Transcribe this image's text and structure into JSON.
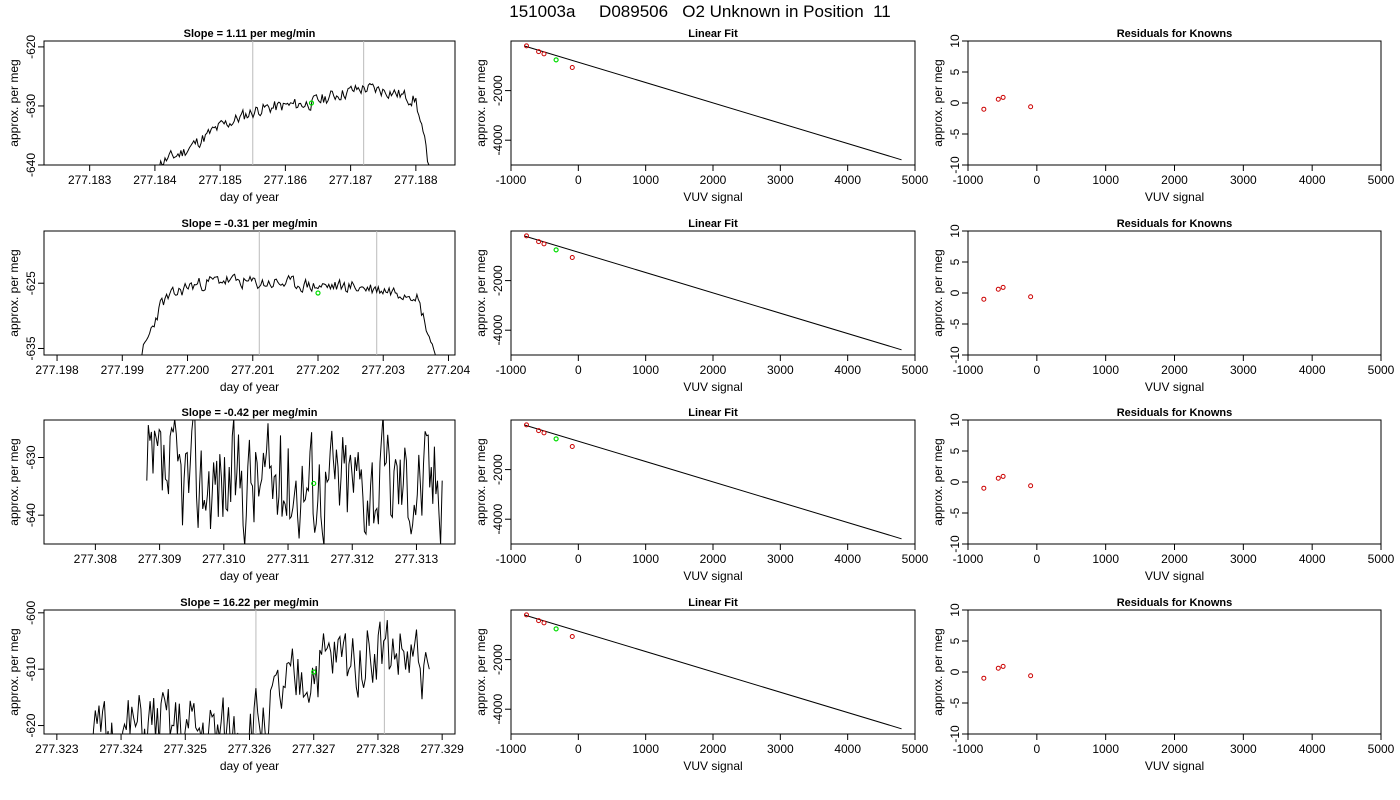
{
  "figure_title": "151003a     D089506   O2 Unknown in Position  11",
  "colors": {
    "trace": "#000000",
    "marker_current": "#00dd00",
    "marker_known": "#cc0000",
    "vline": "#bbbbbb",
    "axis": "#000000"
  },
  "chart_data": [
    {
      "type": "line",
      "panel": "trace",
      "row": 1,
      "title": "Slope =  1.11  per meg/min",
      "xlabel": "day of year",
      "ylabel": "approx. per meg",
      "xlim": [
        277.1823,
        277.1886
      ],
      "ylim": [
        -640,
        -619
      ],
      "xticks": [
        277.183,
        277.184,
        277.185,
        277.186,
        277.187,
        277.188
      ],
      "xtick_labels": [
        "277.183",
        "277.184",
        "277.185",
        "277.186",
        "277.187",
        "277.188"
      ],
      "yticks": [
        -640,
        -630,
        -620
      ],
      "ytick_labels": [
        "-640",
        "-630",
        "-620"
      ],
      "vlines": [
        277.1855,
        277.1872
      ],
      "highlight_point": {
        "x": 277.1864,
        "y": -629.5
      },
      "trace": {
        "x_start": 277.184,
        "x_end": 277.1882,
        "clip_low": true,
        "clip_high": false,
        "seed": 11,
        "knots": [
          [
            277.184,
            -640
          ],
          [
            277.1844,
            -638
          ],
          [
            277.1848,
            -635
          ],
          [
            277.185,
            -633.5
          ],
          [
            277.1853,
            -632
          ],
          [
            277.1856,
            -630.5
          ],
          [
            277.186,
            -630
          ],
          [
            277.1864,
            -629.5
          ],
          [
            277.1868,
            -628
          ],
          [
            277.1872,
            -627
          ],
          [
            277.1876,
            -627.5
          ],
          [
            277.188,
            -629
          ],
          [
            277.1882,
            -640
          ]
        ],
        "noise": 1.6
      }
    },
    {
      "type": "scatter",
      "panel": "fit",
      "row": 1,
      "title": "Linear Fit",
      "xlabel": "VUV signal",
      "ylabel": "approx. per meg",
      "xlim": [
        -1000,
        5000
      ],
      "ylim": [
        -5000,
        0
      ],
      "xticks": [
        -1000,
        0,
        1000,
        2000,
        3000,
        4000,
        5000
      ],
      "xtick_labels": [
        "-1000",
        "0",
        "1000",
        "2000",
        "3000",
        "4000",
        "5000"
      ],
      "yticks": [
        -4000,
        -2000
      ],
      "ytick_labels": [
        "-4000",
        "-2000"
      ],
      "fit_line": {
        "x": [
          -800,
          4800
        ],
        "y": [
          -200,
          -4790
        ]
      },
      "known_points": {
        "x": [
          -770,
          -590,
          -510,
          -90
        ],
        "y": [
          -195,
          -430,
          -520,
          -1070
        ]
      },
      "unknown_point": {
        "x": -330,
        "y": -760
      }
    },
    {
      "type": "scatter",
      "panel": "residuals",
      "row": 1,
      "title": "Residuals for Knowns",
      "xlabel": "VUV signal",
      "ylabel": "approx. per meg",
      "xlim": [
        -1000,
        5000
      ],
      "ylim": [
        -10,
        10
      ],
      "xticks": [
        -1000,
        0,
        1000,
        2000,
        3000,
        4000,
        5000
      ],
      "xtick_labels": [
        "-1000",
        "0",
        "1000",
        "2000",
        "3000",
        "4000",
        "5000"
      ],
      "yticks": [
        -10,
        -5,
        0,
        5,
        10
      ],
      "ytick_labels": [
        "-10",
        "-5",
        "0",
        "5",
        "10"
      ],
      "points": {
        "x": [
          -770,
          -560,
          -490,
          -90
        ],
        "y": [
          -1.0,
          0.6,
          0.9,
          -0.6
        ]
      }
    },
    {
      "type": "line",
      "panel": "trace",
      "row": 2,
      "title": "Slope =  -0.31  per meg/min",
      "xlabel": "day of year",
      "ylabel": "approx. per meg",
      "xlim": [
        277.1978,
        277.2041
      ],
      "ylim": [
        -636,
        -617
      ],
      "xticks": [
        277.198,
        277.199,
        277.2,
        277.201,
        277.202,
        277.203,
        277.204
      ],
      "xtick_labels": [
        "277.198",
        "277.199",
        "277.200",
        "277.201",
        "277.202",
        "277.203",
        "277.204"
      ],
      "yticks": [
        -635,
        -625
      ],
      "ytick_labels": [
        "-635",
        "-625"
      ],
      "vlines": [
        277.2011,
        277.2029
      ],
      "highlight_point": {
        "x": 277.202,
        "y": -626.5
      },
      "trace": {
        "x_start": 277.1993,
        "x_end": 277.2038,
        "clip_low": true,
        "clip_high": false,
        "seed": 23,
        "knots": [
          [
            277.1993,
            -636
          ],
          [
            277.1996,
            -628
          ],
          [
            277.2,
            -625.5
          ],
          [
            277.2005,
            -624.5
          ],
          [
            277.201,
            -625
          ],
          [
            277.2015,
            -625
          ],
          [
            277.202,
            -625.5
          ],
          [
            277.2025,
            -625.5
          ],
          [
            277.203,
            -626
          ],
          [
            277.2035,
            -626.5
          ],
          [
            277.2038,
            -636
          ]
        ],
        "noise": 1.5
      }
    },
    {
      "type": "scatter",
      "panel": "fit",
      "row": 2,
      "title": "Linear Fit",
      "xlabel": "VUV signal",
      "ylabel": "approx. per meg",
      "xlim": [
        -1000,
        5000
      ],
      "ylim": [
        -5000,
        0
      ],
      "xticks": [
        -1000,
        0,
        1000,
        2000,
        3000,
        4000,
        5000
      ],
      "xtick_labels": [
        "-1000",
        "0",
        "1000",
        "2000",
        "3000",
        "4000",
        "5000"
      ],
      "yticks": [
        -4000,
        -2000
      ],
      "ytick_labels": [
        "-4000",
        "-2000"
      ],
      "fit_line": {
        "x": [
          -800,
          4800
        ],
        "y": [
          -200,
          -4790
        ]
      },
      "known_points": {
        "x": [
          -770,
          -590,
          -510,
          -90
        ],
        "y": [
          -195,
          -430,
          -520,
          -1070
        ]
      },
      "unknown_point": {
        "x": -330,
        "y": -760
      }
    },
    {
      "type": "scatter",
      "panel": "residuals",
      "row": 2,
      "title": "Residuals for Knowns",
      "xlabel": "VUV signal",
      "ylabel": "approx. per meg",
      "xlim": [
        -1000,
        5000
      ],
      "ylim": [
        -10,
        10
      ],
      "xticks": [
        -1000,
        0,
        1000,
        2000,
        3000,
        4000,
        5000
      ],
      "xtick_labels": [
        "-1000",
        "0",
        "1000",
        "2000",
        "3000",
        "4000",
        "5000"
      ],
      "yticks": [
        -10,
        -5,
        0,
        5,
        10
      ],
      "ytick_labels": [
        "-10",
        "-5",
        "0",
        "5",
        "10"
      ],
      "points": {
        "x": [
          -770,
          -560,
          -490,
          -90
        ],
        "y": [
          -1.0,
          0.6,
          0.9,
          -0.6
        ]
      }
    },
    {
      "type": "line",
      "panel": "trace",
      "row": 3,
      "title": "Slope =  -0.42  per meg/min",
      "xlabel": "day of year",
      "ylabel": "approx. per meg",
      "xlim": [
        277.3072,
        277.3136
      ],
      "ylim": [
        -645,
        -623.5
      ],
      "xticks": [
        277.308,
        277.309,
        277.31,
        277.311,
        277.312,
        277.313
      ],
      "xtick_labels": [
        "277.308",
        "277.309",
        "277.310",
        "277.311",
        "277.312",
        "277.313"
      ],
      "yticks": [
        -640,
        -630
      ],
      "ytick_labels": [
        "-640",
        "-630"
      ],
      "vlines": [],
      "highlight_point": {
        "x": 277.3114,
        "y": -634.5
      },
      "trace": {
        "x_start": 277.3088,
        "x_end": 277.3134,
        "clip_low": true,
        "clip_high": true,
        "seed": 37,
        "knots": [
          [
            277.3088,
            -634
          ],
          [
            277.31,
            -634
          ],
          [
            277.311,
            -634
          ],
          [
            277.312,
            -634
          ],
          [
            277.3134,
            -634
          ]
        ],
        "noise": 14
      }
    },
    {
      "type": "scatter",
      "panel": "fit",
      "row": 3,
      "title": "Linear Fit",
      "xlabel": "VUV signal",
      "ylabel": "approx. per meg",
      "xlim": [
        -1000,
        5000
      ],
      "ylim": [
        -5000,
        0
      ],
      "xticks": [
        -1000,
        0,
        1000,
        2000,
        3000,
        4000,
        5000
      ],
      "xtick_labels": [
        "-1000",
        "0",
        "1000",
        "2000",
        "3000",
        "4000",
        "5000"
      ],
      "yticks": [
        -4000,
        -2000
      ],
      "ytick_labels": [
        "-4000",
        "-2000"
      ],
      "fit_line": {
        "x": [
          -800,
          4800
        ],
        "y": [
          -200,
          -4790
        ]
      },
      "known_points": {
        "x": [
          -770,
          -590,
          -510,
          -90
        ],
        "y": [
          -195,
          -430,
          -520,
          -1070
        ]
      },
      "unknown_point": {
        "x": -330,
        "y": -760
      }
    },
    {
      "type": "scatter",
      "panel": "residuals",
      "row": 3,
      "title": "Residuals for Knowns",
      "xlabel": "VUV signal",
      "ylabel": "approx. per meg",
      "xlim": [
        -1000,
        5000
      ],
      "ylim": [
        -10,
        10
      ],
      "xticks": [
        -1000,
        0,
        1000,
        2000,
        3000,
        4000,
        5000
      ],
      "xtick_labels": [
        "-1000",
        "0",
        "1000",
        "2000",
        "3000",
        "4000",
        "5000"
      ],
      "yticks": [
        -10,
        -5,
        0,
        5,
        10
      ],
      "ytick_labels": [
        "-10",
        "-5",
        "0",
        "5",
        "10"
      ],
      "points": {
        "x": [
          -770,
          -560,
          -490,
          -90
        ],
        "y": [
          -1.0,
          0.6,
          0.9,
          -0.6
        ]
      }
    },
    {
      "type": "line",
      "panel": "trace",
      "row": 4,
      "title": "Slope =  16.22  per meg/min",
      "xlabel": "day of year",
      "ylabel": "approx. per meg",
      "xlim": [
        277.3228,
        277.3292
      ],
      "ylim": [
        -621.5,
        -599.5
      ],
      "xticks": [
        277.323,
        277.324,
        277.325,
        277.326,
        277.327,
        277.328,
        277.329
      ],
      "xtick_labels": [
        "277.323",
        "277.324",
        "277.325",
        "277.326",
        "277.327",
        "277.328",
        "277.329"
      ],
      "yticks": [
        -620,
        -610,
        -600
      ],
      "ytick_labels": [
        "-620",
        "-610",
        "-600"
      ],
      "vlines": [
        277.3261,
        277.3281
      ],
      "highlight_point": {
        "x": 277.327,
        "y": -610.5
      },
      "trace": {
        "x_start": 277.3234,
        "x_end": 277.3288,
        "clip_low": true,
        "clip_high": true,
        "seed": 51,
        "knots": [
          [
            277.3234,
            -624
          ],
          [
            277.3245,
            -620
          ],
          [
            277.3255,
            -622
          ],
          [
            277.3262,
            -619
          ],
          [
            277.327,
            -610
          ],
          [
            277.328,
            -606
          ],
          [
            277.3288,
            -610
          ]
        ],
        "noise": 9
      }
    },
    {
      "type": "scatter",
      "panel": "fit",
      "row": 4,
      "title": "Linear Fit",
      "xlabel": "VUV signal",
      "ylabel": "approx. per meg",
      "xlim": [
        -1000,
        5000
      ],
      "ylim": [
        -5000,
        0
      ],
      "xticks": [
        -1000,
        0,
        1000,
        2000,
        3000,
        4000,
        5000
      ],
      "xtick_labels": [
        "-1000",
        "0",
        "1000",
        "2000",
        "3000",
        "4000",
        "5000"
      ],
      "yticks": [
        -4000,
        -2000
      ],
      "ytick_labels": [
        "-4000",
        "-2000"
      ],
      "fit_line": {
        "x": [
          -800,
          4800
        ],
        "y": [
          -200,
          -4790
        ]
      },
      "known_points": {
        "x": [
          -770,
          -590,
          -510,
          -90
        ],
        "y": [
          -195,
          -430,
          -520,
          -1070
        ]
      },
      "unknown_point": {
        "x": -330,
        "y": -760
      }
    },
    {
      "type": "scatter",
      "panel": "residuals",
      "row": 4,
      "title": "Residuals for Knowns",
      "xlabel": "VUV signal",
      "ylabel": "approx. per meg",
      "xlim": [
        -1000,
        5000
      ],
      "ylim": [
        -10,
        10
      ],
      "xticks": [
        -1000,
        0,
        1000,
        2000,
        3000,
        4000,
        5000
      ],
      "xtick_labels": [
        "-1000",
        "0",
        "1000",
        "2000",
        "3000",
        "4000",
        "5000"
      ],
      "yticks": [
        -10,
        -5,
        0,
        5,
        10
      ],
      "ytick_labels": [
        "-10",
        "-5",
        "0",
        "5",
        "10"
      ],
      "points": {
        "x": [
          -770,
          -560,
          -490,
          -90
        ],
        "y": [
          -1.0,
          0.6,
          0.9,
          -0.6
        ]
      }
    }
  ]
}
